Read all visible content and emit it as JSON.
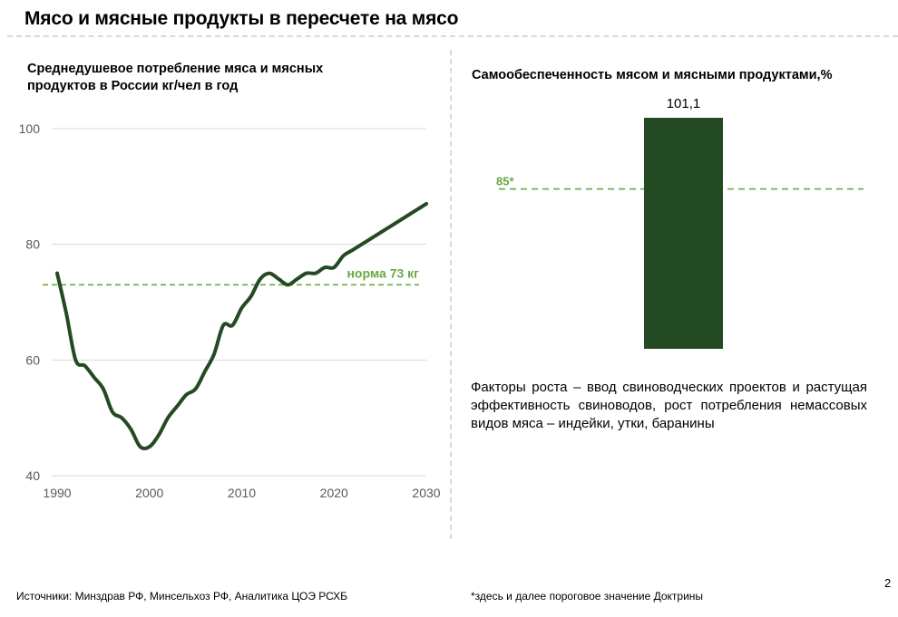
{
  "slide": {
    "title": "Мясо и мясные продукты в пересчете на мясо",
    "page_number": "2",
    "sources": "Источники: Минздрав РФ, Минсельхоз РФ, Аналитика ЦОЭ РСХБ",
    "footnote": "*здесь и далее пороговое значение Доктрины",
    "factors_text": "Факторы роста – ввод свиноводческих проектов и растущая эффективность свиноводов, рост потребления немассовых видов мяса – индейки, утки, баранины",
    "colors": {
      "line": "#244a24",
      "norm": "#6aa843",
      "bar": "#244a24",
      "grid": "#d9d9d9"
    }
  },
  "chart_data": [
    {
      "type": "line",
      "title": "Среднедушевое потребление мяса  и мясных\nпродуктов в России кг/чел в год",
      "xlabel": "",
      "ylabel": "",
      "xlim": [
        1990,
        2030
      ],
      "ylim": [
        40,
        100
      ],
      "xticks": [
        "1990",
        "2000",
        "2010",
        "2020",
        "2030"
      ],
      "yticks": [
        "40",
        "60",
        "80",
        "100"
      ],
      "grid": true,
      "series": [
        {
          "x": [
            1990,
            1991,
            1992,
            1993,
            1994,
            1995,
            1996,
            1997,
            1998,
            1999,
            2000,
            2001,
            2002,
            2003,
            2004,
            2005,
            2006,
            2007,
            2008,
            2009,
            2010,
            2011,
            2012,
            2013,
            2014,
            2015,
            2016,
            2017,
            2018,
            2019,
            2020,
            2021,
            2022,
            2023,
            2024,
            2025,
            2026,
            2027,
            2028,
            2029,
            2030
          ],
          "y": [
            75,
            68,
            60,
            59,
            57,
            55,
            51,
            50,
            48,
            45,
            45,
            47,
            50,
            52,
            54,
            55,
            58,
            61,
            66,
            66,
            69,
            71,
            74,
            75,
            74,
            73,
            74,
            75,
            75,
            76,
            76,
            78,
            79,
            80,
            81,
            82,
            83,
            84,
            85,
            86,
            87
          ]
        }
      ],
      "annotations": [
        {
          "type": "hline",
          "y": 73,
          "label": "норма 73 кг",
          "style": "dashed"
        }
      ]
    },
    {
      "type": "bar",
      "title": "Самообеспеченность мясом и мясными продуктами,%",
      "categories": [
        ""
      ],
      "values": [
        101.1
      ],
      "data_labels": [
        "101,1"
      ],
      "annotations": [
        {
          "type": "hline",
          "y": 85,
          "label": "85*",
          "style": "dashed"
        }
      ]
    }
  ]
}
